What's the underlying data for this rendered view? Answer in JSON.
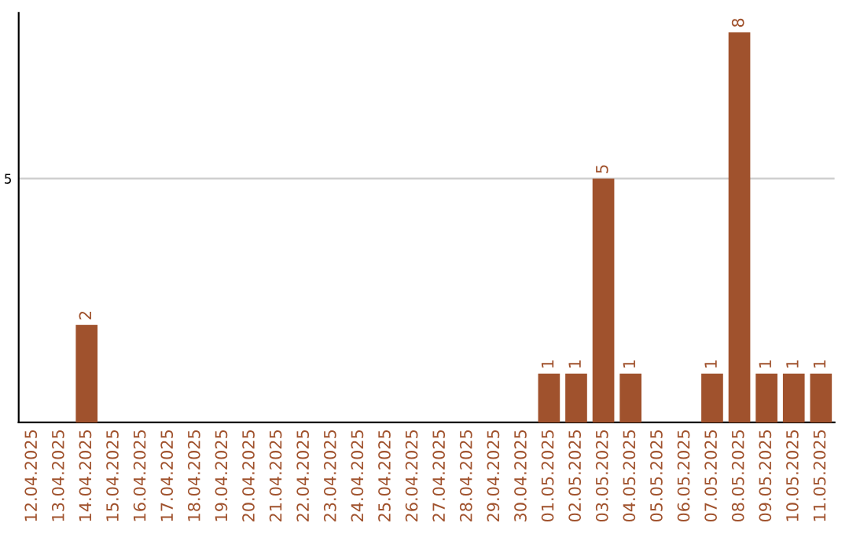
{
  "chart_data": {
    "type": "bar",
    "categories": [
      "12.04.2025",
      "13.04.2025",
      "14.04.2025",
      "15.04.2025",
      "16.04.2025",
      "17.04.2025",
      "18.04.2025",
      "19.04.2025",
      "20.04.2025",
      "21.04.2025",
      "22.04.2025",
      "23.04.2025",
      "24.04.2025",
      "25.04.2025",
      "26.04.2025",
      "27.04.2025",
      "28.04.2025",
      "29.04.2025",
      "30.04.2025",
      "01.05.2025",
      "02.05.2025",
      "03.05.2025",
      "04.05.2025",
      "05.05.2025",
      "06.05.2025",
      "07.05.2025",
      "08.05.2025",
      "09.05.2025",
      "10.05.2025",
      "11.05.2025"
    ],
    "values": [
      0,
      0,
      2,
      0,
      0,
      0,
      0,
      0,
      0,
      0,
      0,
      0,
      0,
      0,
      0,
      0,
      0,
      0,
      0,
      1,
      1,
      5,
      1,
      0,
      0,
      1,
      8,
      1,
      1,
      1
    ],
    "value_labels": [
      null,
      null,
      "2",
      null,
      null,
      null,
      null,
      null,
      null,
      null,
      null,
      null,
      null,
      null,
      null,
      null,
      null,
      null,
      null,
      "1",
      "1",
      "5",
      "1",
      null,
      null,
      "1",
      "8",
      "1",
      "1",
      "1"
    ],
    "color": "#a0522d",
    "ylim": [
      0,
      8.4
    ],
    "yticks": [
      5
    ],
    "grid": "y",
    "legend": false
  }
}
